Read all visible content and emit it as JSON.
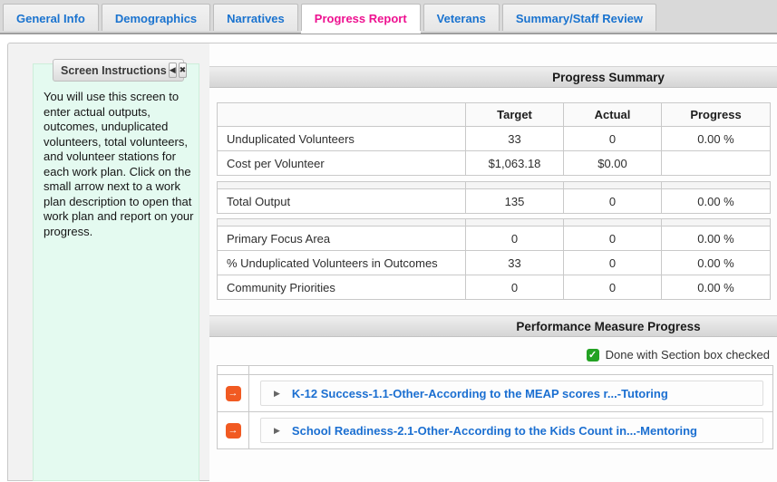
{
  "tabs": [
    {
      "label": "General Info",
      "active": false
    },
    {
      "label": "Demographics",
      "active": false
    },
    {
      "label": "Narratives",
      "active": false
    },
    {
      "label": "Progress Report",
      "active": true
    },
    {
      "label": "Veterans",
      "active": false
    },
    {
      "label": "Summary/Staff Review",
      "active": false
    }
  ],
  "instructions": {
    "title": "Screen Instructions",
    "body": "You will use this screen to enter actual outputs, outcomes, unduplicated volunteers, total volunteers, and volunteer stations for each work plan. Click on the small arrow next to a work plan description to open that work plan and report on your progress."
  },
  "icons": {
    "collapse_glyph": "◀",
    "close_glyph": "✖",
    "check_glyph": "✓",
    "expand_glyph": "▶",
    "open_workplan_glyph": "→"
  },
  "progress_summary": {
    "title": "Progress Summary",
    "header": {
      "target": "Target",
      "actual": "Actual",
      "progress": "Progress"
    },
    "rows": {
      "unduplicated_volunteers": {
        "label": "Unduplicated Volunteers",
        "target": "33",
        "actual": "0",
        "progress": "0.00 %"
      },
      "cost_per_volunteer": {
        "label": "Cost per Volunteer",
        "target": "$1,063.18",
        "actual": "$0.00",
        "progress": ""
      },
      "total_output": {
        "label": "Total Output",
        "target": "135",
        "actual": "0",
        "progress": "0.00 %"
      },
      "primary_focus_area": {
        "label": "Primary Focus Area",
        "target": "0",
        "actual": "0",
        "progress": "0.00 %"
      },
      "pct_unduplicated_in_outcomes": {
        "label": "% Unduplicated Volunteers in Outcomes",
        "target": "33",
        "actual": "0",
        "progress": "0.00 %"
      },
      "community_priorities": {
        "label": "Community Priorities",
        "target": "0",
        "actual": "0",
        "progress": "0.00 %"
      }
    }
  },
  "performance": {
    "title": "Performance Measure Progress",
    "legend": "Done with Section box checked",
    "items": [
      {
        "label": "K-12 Success-1.1-Other-According to the MEAP scores r...-Tutoring"
      },
      {
        "label": "School Readiness-2.1-Other-According to the Kids Count in...-Mentoring"
      }
    ]
  },
  "colors": {
    "tab_link_blue": "#1a73cf",
    "tab_active_pink": "#ee1190",
    "measure_link_blue": "#1b6fd1",
    "orange_icon": "#f15a22",
    "checkbox_green": "#23a223",
    "instructions_bg": "#e4faf0"
  }
}
